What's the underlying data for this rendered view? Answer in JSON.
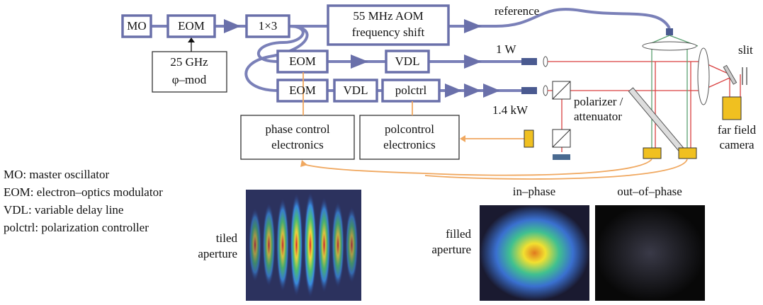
{
  "nodes": [
    {
      "lines": [
        "MO"
      ]
    },
    {
      "lines": [
        "EOM"
      ]
    },
    {
      "lines": [
        "25 GHz",
        "φ–mod"
      ]
    },
    {
      "lines": [
        "1×3"
      ]
    },
    {
      "lines": [
        "55 MHz AOM",
        "frequency shift"
      ]
    },
    {
      "lines": [
        "EOM"
      ]
    },
    {
      "lines": [
        "VDL"
      ]
    },
    {
      "lines": [
        "EOM"
      ]
    },
    {
      "lines": [
        "VDL"
      ]
    },
    {
      "lines": [
        "polctrl"
      ]
    },
    {
      "lines": [
        "phase control",
        "electronics"
      ]
    },
    {
      "lines": [
        "polcontrol",
        "electronics"
      ]
    }
  ],
  "annotations": [
    [
      "reference"
    ],
    [
      "1 W"
    ],
    [
      "1.4 kW"
    ],
    [
      "polarizer /",
      "attenuator"
    ],
    [
      "slit"
    ],
    [
      "far field",
      "camera"
    ]
  ],
  "legend": [
    "MO: master oscillator",
    "EOM: electron–optics modulator",
    "VDL: variable delay line",
    "polctrl: polarization controller"
  ],
  "images": [
    [
      "tiled",
      "aperture"
    ],
    [
      "filled",
      "aperture"
    ],
    [
      "in–phase"
    ],
    [
      "out–of–phase"
    ]
  ]
}
